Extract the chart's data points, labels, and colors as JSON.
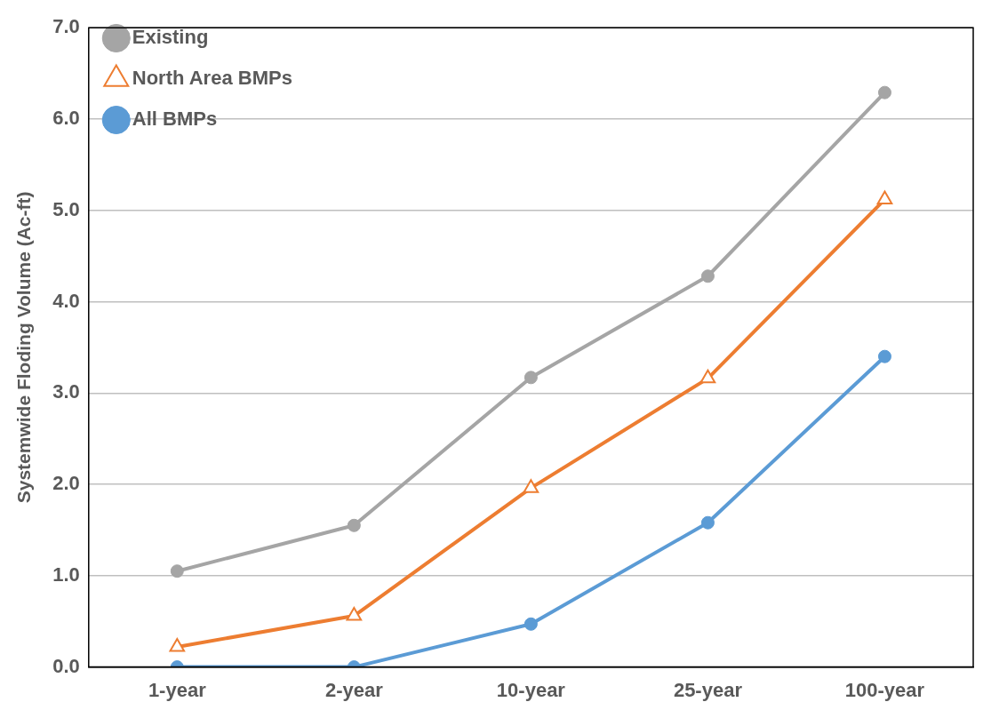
{
  "chart_data": {
    "type": "line",
    "ylabel": "Systemwide Floding Volume (Ac-ft)",
    "categories": [
      "1-year",
      "2-year",
      "10-year",
      "25-year",
      "100-year"
    ],
    "series": [
      {
        "name": "Existing",
        "color": "#a5a5a5",
        "marker": "circle",
        "values": [
          1.05,
          1.55,
          3.17,
          4.28,
          6.29
        ]
      },
      {
        "name": "North Area BMPs",
        "color": "#ed7d31",
        "marker": "triangle",
        "values": [
          0.22,
          0.56,
          1.96,
          3.16,
          5.12
        ]
      },
      {
        "name": "All BMPs",
        "color": "#5b9bd5",
        "marker": "circle",
        "values": [
          0,
          0,
          0.47,
          1.58,
          3.4
        ]
      }
    ],
    "ylim": [
      0,
      7
    ],
    "yticks": [
      {
        "value": 0,
        "label": "0.0"
      },
      {
        "value": 1,
        "label": "1.0"
      },
      {
        "value": 2,
        "label": "2.0"
      },
      {
        "value": 3,
        "label": "3.0"
      },
      {
        "value": 4,
        "label": "4.0"
      },
      {
        "value": 5,
        "label": "5.0"
      },
      {
        "value": 6,
        "label": "6.0"
      },
      {
        "value": 7,
        "label": "7.0"
      }
    ],
    "grid": "y",
    "legend": "top left",
    "line_style": "solid"
  }
}
